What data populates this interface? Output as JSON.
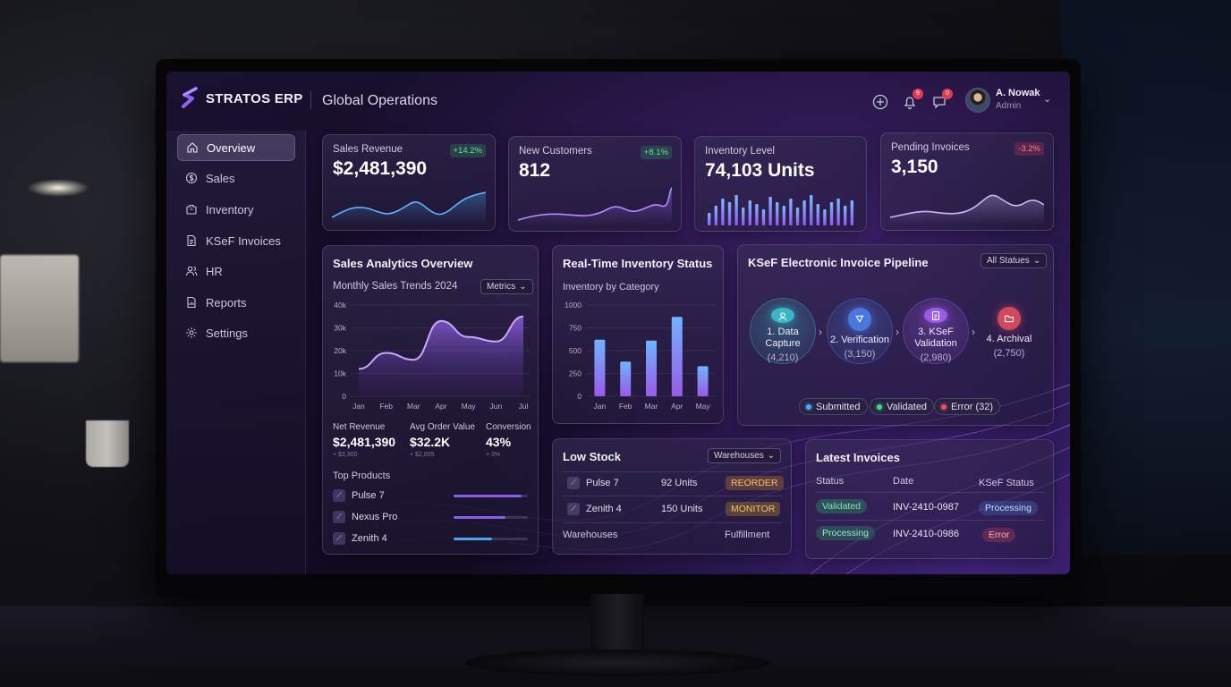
{
  "brand": {
    "name": "STRATOS ERP",
    "workspace": "Global Operations"
  },
  "header": {
    "notifications_count": "9",
    "messages_count": "0",
    "user_name": "A. Nowak",
    "user_role": "Admin"
  },
  "sidebar": {
    "items": [
      {
        "label": "Overview",
        "icon": "home-icon",
        "active": true
      },
      {
        "label": "Sales",
        "icon": "dollar-icon"
      },
      {
        "label": "Inventory",
        "icon": "box-icon"
      },
      {
        "label": "KSeF Invoices",
        "icon": "document-icon"
      },
      {
        "label": "HR",
        "icon": "people-icon"
      },
      {
        "label": "Reports",
        "icon": "report-icon"
      },
      {
        "label": "Settings",
        "icon": "gear-icon"
      }
    ]
  },
  "kpis": [
    {
      "label": "Sales Revenue",
      "value": "$2,481,390",
      "delta": "+14.2%",
      "trend": "up"
    },
    {
      "label": "New Customers",
      "value": "812",
      "delta": "+8.1%",
      "trend": "up"
    },
    {
      "label": "Inventory Level",
      "value": "74,103 Units",
      "delta": "",
      "trend": "bars"
    },
    {
      "label": "Pending Invoices",
      "value": "3,150",
      "delta": "-3.2%",
      "trend": "down"
    }
  ],
  "sales_analytics": {
    "title": "Sales Analytics Overview",
    "subtitle": "Monthly Sales Trends 2024",
    "select_label": "Metrics",
    "metrics": [
      {
        "label": "Net Revenue",
        "value": "$2,481,390",
        "note": "+ $3,300"
      },
      {
        "label": "Avg Order Value",
        "value": "$32.2K",
        "note": "+ $2,005"
      },
      {
        "label": "Conversion",
        "value": "43%",
        "note": "+ 3%"
      }
    ],
    "top_products_title": "Top Products",
    "top_products": [
      {
        "name": "Pulse 7",
        "share": 0.92,
        "color": "#8a5cf0"
      },
      {
        "name": "Nexus Pro",
        "share": 0.7,
        "color": "#8a5cf0"
      },
      {
        "name": "Zenith 4",
        "share": 0.52,
        "color": "#4aa6f0"
      }
    ]
  },
  "inventory_status": {
    "title": "Real-Time Inventory Status",
    "subtitle": "Inventory by Category"
  },
  "pipeline": {
    "title": "KSeF Electronic Invoice Pipeline",
    "select_label": "All Statues",
    "stages": [
      {
        "name_line1": "1. Data",
        "name_line2": "Capture",
        "count": "(4,210)",
        "color": "#3bb6c4",
        "icon": "users-icon"
      },
      {
        "name_line1": "2. Verification",
        "name_line2": "",
        "count": "(3,150)",
        "color": "#4a78e0",
        "icon": "check-shield-icon"
      },
      {
        "name_line1": "3. KSeF",
        "name_line2": "Validation",
        "count": "(2,980)",
        "color": "#9a5ae8",
        "icon": "doc-check-icon"
      },
      {
        "name_line1": "4. Archival",
        "name_line2": "",
        "count": "(2,750)",
        "color": "#d2485c",
        "icon": "folder-icon"
      }
    ],
    "legend": [
      {
        "label": "Submitted",
        "color": "#4aa8f5"
      },
      {
        "label": "Validated",
        "color": "#3fd68e"
      },
      {
        "label": "Error (32)",
        "color": "#ee4a60"
      }
    ]
  },
  "low_stock": {
    "title": "Low Stock",
    "select_label": "Warehouses",
    "rows": [
      {
        "product": "Pulse 7",
        "units": "92 Units",
        "tag": "REORDER"
      },
      {
        "product": "Zenith 4",
        "units": "150 Units",
        "tag": "MONITOR"
      }
    ],
    "footer_left": "Warehouses",
    "footer_right": "Fulfillment"
  },
  "latest_invoices": {
    "title": "Latest Invoices",
    "headers": {
      "status": "Status",
      "date": "Date",
      "ksef": "KSeF Status"
    },
    "rows": [
      {
        "status": "Validated",
        "number": "INV-2410-0987",
        "ksef": "Processing"
      },
      {
        "status": "Processing",
        "number": "INV-2410-0986",
        "ksef": "Error"
      }
    ]
  },
  "chart_data": [
    {
      "type": "area",
      "title": "Monthly Sales Trends 2024",
      "categories": [
        "Jan",
        "Feb",
        "Mar",
        "Apr",
        "May",
        "Jun",
        "Jul"
      ],
      "series": [
        {
          "values": [
            12000,
            19000,
            16000,
            33000,
            26000,
            24000,
            35000
          ]
        }
      ],
      "y_ticks": [
        "0",
        "10k",
        "20k",
        "30k",
        "40k"
      ],
      "ylim": [
        0,
        40000
      ],
      "grid": true,
      "color": "#9a6af5"
    },
    {
      "type": "bar",
      "title": "Inventory by Category",
      "categories": [
        "Jan",
        "Feb",
        "Mar",
        "Apr",
        "May"
      ],
      "series": [
        {
          "values": [
            620,
            380,
            610,
            870,
            330
          ]
        }
      ],
      "y_ticks": [
        "0",
        "250",
        "500",
        "750",
        "1000"
      ],
      "ylim": [
        0,
        1000
      ],
      "grid": true,
      "color": "#7d8cf5"
    }
  ]
}
